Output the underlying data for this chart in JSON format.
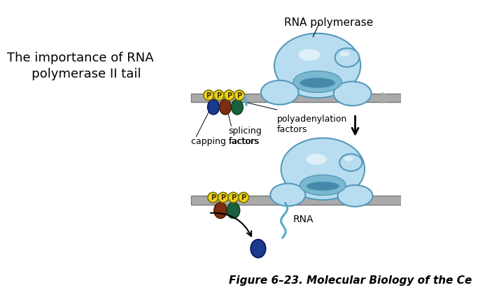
{
  "title": "The importance of RNA\n   polymerase II tail",
  "figure_caption": "Figure 6–23. Molecular Biology of the Ce",
  "bg_color": "#ffffff",
  "title_fontsize": 13,
  "caption_fontsize": 11,
  "rna_pol_label": "RNA polymerase",
  "polyadenylation_label": "polyadenylation\nfactors",
  "splicing_label": "splicing\nfactors",
  "capping_label": "capping factors",
  "rna_label": "RNA",
  "dna_color": "#aaaaaa",
  "dna_outline": "#777777",
  "polymerase_color": "#b8ddf0",
  "polymerase_outline": "#5599bb",
  "p_circle_color": "#f5d020",
  "p_text_color": "#333300",
  "blue_dot_color": "#1a3a8c",
  "brown_dot_color": "#7a3010",
  "green_dot_color": "#1a6040",
  "rna_strand_color": "#55aacc",
  "gray_arrow_color": "#aaaaaa",
  "groove_color": "#7ab8d0",
  "inner_groove_color": "#4488aa"
}
